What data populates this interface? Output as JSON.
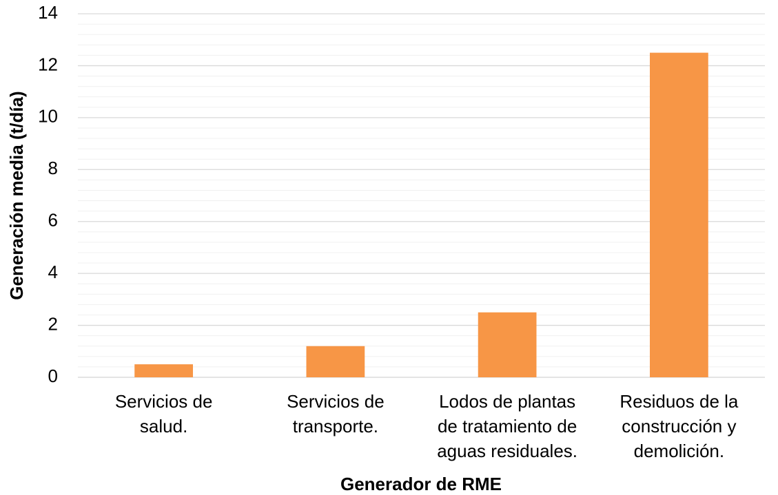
{
  "chart_data": {
    "type": "bar",
    "x_label": "Generador de RME",
    "y_label": "Generación media (t/día)",
    "categories": [
      [
        "Servicios de",
        "salud."
      ],
      [
        "Servicios de",
        "transporte."
      ],
      [
        "Lodos de plantas",
        "de tratamiento de",
        "aguas residuales."
      ],
      [
        "Residuos de la",
        "construcción y",
        "demolición."
      ]
    ],
    "values": [
      0.5,
      1.2,
      2.5,
      12.5
    ],
    "color": "#f79646",
    "ylim": [
      0,
      14
    ],
    "yticks": [
      0,
      2,
      4,
      6,
      8,
      10,
      12,
      14
    ],
    "minor_yticks": [
      0.4,
      0.8,
      1.2,
      1.6,
      2.4,
      2.8,
      3.2,
      3.6,
      4.4,
      4.8,
      5.2,
      5.6,
      6.4,
      6.8,
      7.2,
      7.6,
      8.4,
      8.8,
      9.2,
      9.6,
      10.4,
      10.8,
      11.2,
      11.6,
      12.4,
      12.8,
      13.2,
      13.6
    ],
    "grid": true
  }
}
